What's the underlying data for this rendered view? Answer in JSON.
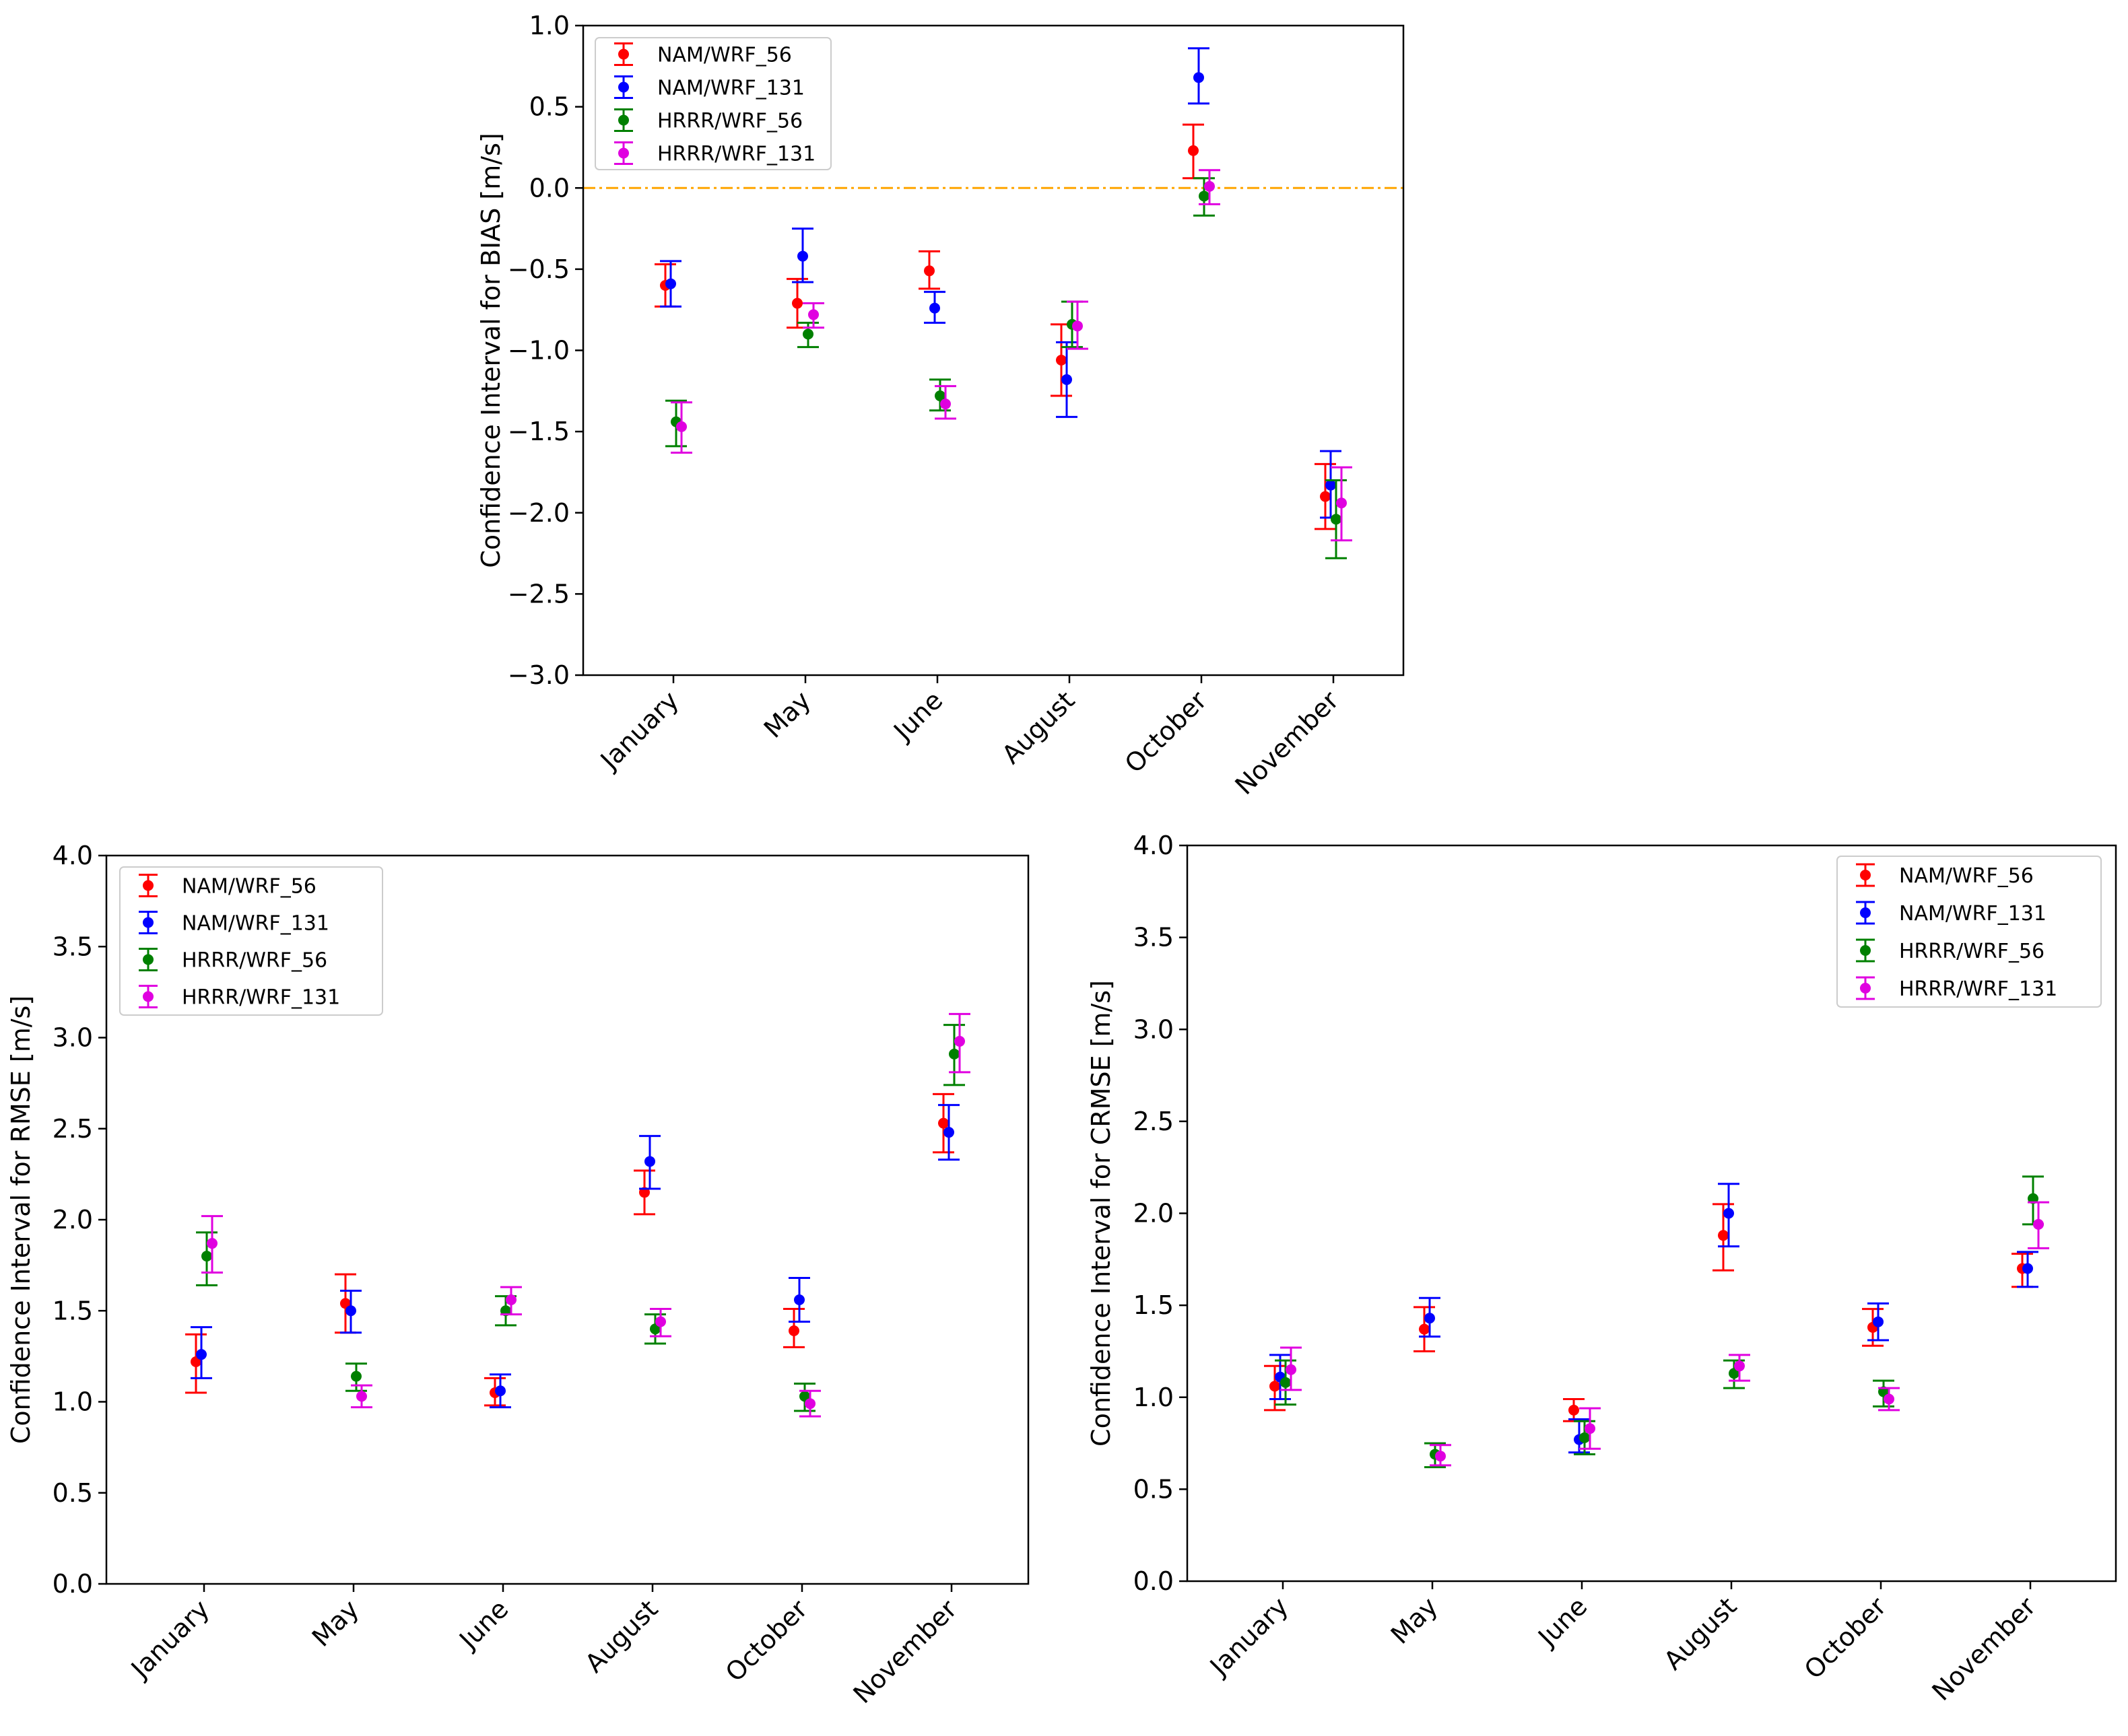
{
  "chart_data": [
    {
      "type": "errorbar",
      "id": "bias",
      "title": "",
      "xlabel": "",
      "ylabel": "Confidence Interval for BIAS [m/s]",
      "ylim": [
        -3.0,
        1.0
      ],
      "yticks": [
        -3.0,
        -2.5,
        -2.0,
        -1.5,
        -1.0,
        -0.5,
        0.0,
        0.5,
        1.0
      ],
      "ytick_labels": [
        "−3.0",
        "−2.5",
        "−2.0",
        "−1.5",
        "−1.0",
        "−0.5",
        "0.0",
        "0.5",
        "1.0"
      ],
      "categories": [
        "January",
        "May",
        "June",
        "August",
        "October",
        "November"
      ],
      "reference_line": {
        "y": 0.0,
        "color": "#ffa500",
        "style": "dashdot"
      },
      "legend_position": "upper-left",
      "series": [
        {
          "name": "NAM/WRF_56",
          "color": "#ff0000",
          "values": [
            -0.6,
            -0.71,
            -0.51,
            -1.06,
            0.23,
            -1.9
          ],
          "lower": [
            -0.73,
            -0.86,
            -0.62,
            -1.28,
            0.06,
            -2.1
          ],
          "upper": [
            -0.47,
            -0.56,
            -0.39,
            -0.84,
            0.39,
            -1.7
          ]
        },
        {
          "name": "NAM/WRF_131",
          "color": "#0000ff",
          "values": [
            -0.59,
            -0.42,
            -0.74,
            -1.18,
            0.68,
            -1.83
          ],
          "lower": [
            -0.73,
            -0.58,
            -0.83,
            -1.41,
            0.52,
            -2.03
          ],
          "upper": [
            -0.45,
            -0.25,
            -0.64,
            -0.95,
            0.86,
            -1.62
          ]
        },
        {
          "name": "HRRR/WRF_56",
          "color": "#008000",
          "values": [
            -1.44,
            -0.9,
            -1.28,
            -0.84,
            -0.05,
            -2.04
          ],
          "lower": [
            -1.59,
            -0.98,
            -1.37,
            -0.98,
            -0.17,
            -2.28
          ],
          "upper": [
            -1.31,
            -0.83,
            -1.18,
            -0.7,
            0.06,
            -1.8
          ]
        },
        {
          "name": "HRRR/WRF_131",
          "color": "#e000e0",
          "values": [
            -1.47,
            -0.78,
            -1.33,
            -0.85,
            0.01,
            -1.94
          ],
          "lower": [
            -1.63,
            -0.86,
            -1.42,
            -0.99,
            -0.1,
            -2.17
          ],
          "upper": [
            -1.32,
            -0.71,
            -1.22,
            -0.7,
            0.11,
            -1.72
          ]
        }
      ]
    },
    {
      "type": "errorbar",
      "id": "rmse",
      "title": "",
      "xlabel": "",
      "ylabel": "Confidence Interval for RMSE [m/s]",
      "ylim": [
        0.0,
        4.0
      ],
      "yticks": [
        0.0,
        0.5,
        1.0,
        1.5,
        2.0,
        2.5,
        3.0,
        3.5,
        4.0
      ],
      "ytick_labels": [
        "0.0",
        "0.5",
        "1.0",
        "1.5",
        "2.0",
        "2.5",
        "3.0",
        "3.5",
        "4.0"
      ],
      "categories": [
        "January",
        "May",
        "June",
        "August",
        "October",
        "November"
      ],
      "legend_position": "upper-left",
      "series": [
        {
          "name": "NAM/WRF_56",
          "color": "#ff0000",
          "values": [
            1.22,
            1.54,
            1.05,
            2.15,
            1.39,
            2.53
          ],
          "lower": [
            1.05,
            1.38,
            0.98,
            2.03,
            1.3,
            2.37
          ],
          "upper": [
            1.37,
            1.7,
            1.13,
            2.27,
            1.51,
            2.69
          ]
        },
        {
          "name": "NAM/WRF_131",
          "color": "#0000ff",
          "values": [
            1.26,
            1.5,
            1.06,
            2.32,
            1.56,
            2.48
          ],
          "lower": [
            1.13,
            1.38,
            0.97,
            2.17,
            1.44,
            2.33
          ],
          "upper": [
            1.41,
            1.61,
            1.15,
            2.46,
            1.68,
            2.63
          ]
        },
        {
          "name": "HRRR/WRF_56",
          "color": "#008000",
          "values": [
            1.8,
            1.14,
            1.5,
            1.4,
            1.03,
            2.91
          ],
          "lower": [
            1.64,
            1.06,
            1.42,
            1.32,
            0.95,
            2.74
          ],
          "upper": [
            1.93,
            1.21,
            1.58,
            1.48,
            1.1,
            3.07
          ]
        },
        {
          "name": "HRRR/WRF_131",
          "color": "#e000e0",
          "values": [
            1.87,
            1.03,
            1.56,
            1.44,
            0.99,
            2.98
          ],
          "lower": [
            1.71,
            0.97,
            1.48,
            1.36,
            0.92,
            2.81
          ],
          "upper": [
            2.02,
            1.09,
            1.63,
            1.51,
            1.06,
            3.13
          ]
        }
      ]
    },
    {
      "type": "errorbar",
      "id": "crmse",
      "title": "",
      "xlabel": "",
      "ylabel": "Confidence Interval for CRMSE [m/s]",
      "ylim": [
        0.0,
        4.0
      ],
      "yticks": [
        0.0,
        0.5,
        1.0,
        1.5,
        2.0,
        2.5,
        3.0,
        3.5,
        4.0
      ],
      "ytick_labels": [
        "0.0",
        "0.5",
        "1.0",
        "1.5",
        "2.0",
        "2.5",
        "3.0",
        "3.5",
        "4.0"
      ],
      "categories": [
        "January",
        "May",
        "June",
        "August",
        "October",
        "November"
      ],
      "legend_position": "upper-right",
      "series": [
        {
          "name": "NAM/WRF_56",
          "color": "#ff0000",
          "values": [
            1.06,
            1.37,
            0.93,
            1.88,
            1.38,
            1.7
          ],
          "lower": [
            0.93,
            1.25,
            0.87,
            1.69,
            1.28,
            1.6
          ],
          "upper": [
            1.17,
            1.49,
            0.99,
            2.05,
            1.48,
            1.78
          ]
        },
        {
          "name": "NAM/WRF_131",
          "color": "#0000ff",
          "values": [
            1.11,
            1.43,
            0.77,
            2.0,
            1.41,
            1.7
          ],
          "lower": [
            0.99,
            1.33,
            0.7,
            1.82,
            1.31,
            1.6
          ],
          "upper": [
            1.23,
            1.54,
            0.88,
            2.16,
            1.51,
            1.79
          ]
        },
        {
          "name": "HRRR/WRF_56",
          "color": "#008000",
          "values": [
            1.08,
            0.69,
            0.78,
            1.13,
            1.03,
            2.08
          ],
          "lower": [
            0.96,
            0.62,
            0.69,
            1.05,
            0.95,
            1.94
          ],
          "upper": [
            1.2,
            0.75,
            0.87,
            1.2,
            1.09,
            2.2
          ]
        },
        {
          "name": "HRRR/WRF_131",
          "color": "#e000e0",
          "values": [
            1.15,
            0.68,
            0.83,
            1.17,
            0.99,
            1.94
          ],
          "lower": [
            1.04,
            0.63,
            0.72,
            1.09,
            0.93,
            1.81
          ],
          "upper": [
            1.27,
            0.74,
            0.94,
            1.23,
            1.05,
            2.06
          ]
        }
      ]
    }
  ]
}
